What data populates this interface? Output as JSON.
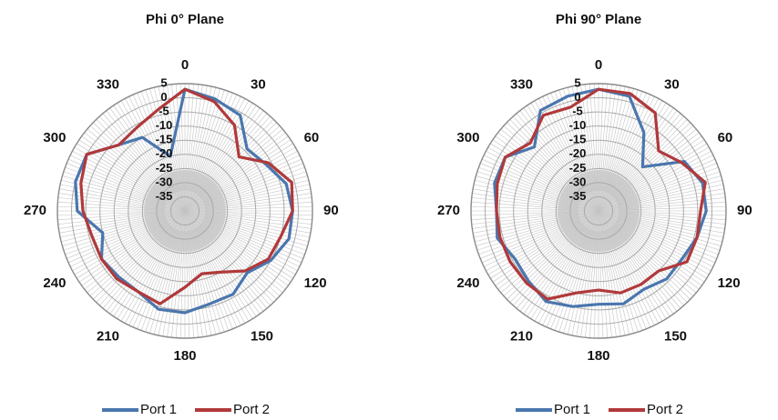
{
  "chart_data": [
    {
      "type": "radar",
      "title": "Phi 0° Plane",
      "angle_labels": [
        "0",
        "30",
        "60",
        "90",
        "120",
        "150",
        "180",
        "210",
        "240",
        "270",
        "300",
        "330"
      ],
      "radial_tick_labels": [
        "5",
        "0",
        "-5",
        "-10",
        "-15",
        "-20",
        "-25",
        "-30",
        "-35"
      ],
      "rlim": [
        -40,
        5
      ],
      "grid": true,
      "legend_position": "bottom",
      "angles_deg": [
        0,
        15,
        30,
        45,
        60,
        75,
        90,
        105,
        120,
        135,
        150,
        165,
        180,
        195,
        210,
        225,
        240,
        255,
        270,
        285,
        300,
        315,
        330,
        345
      ],
      "series": [
        {
          "name": "Port 1",
          "color": "#4a76ae",
          "values": [
            3,
            1,
            -1,
            -9,
            -7,
            -3,
            -2,
            -2,
            -5,
            -9,
            -6,
            -6,
            -4,
            -4,
            -7,
            -7,
            -6,
            -10,
            -2,
            0,
            0,
            -7,
            -10,
            -20
          ]
        },
        {
          "name": "Port 2",
          "color": "#b0393b",
          "values": [
            3,
            0,
            -5,
            -13,
            -6,
            -1,
            -2,
            -5,
            -6,
            -10,
            -15,
            -17,
            -13,
            -6,
            -7,
            -6,
            -6,
            -6,
            -4,
            -2,
            0,
            -7,
            -6,
            -3
          ]
        }
      ]
    },
    {
      "type": "radar",
      "title": "Phi 90° Plane",
      "angle_labels": [
        "0",
        "30",
        "60",
        "90",
        "120",
        "150",
        "180",
        "210",
        "240",
        "270",
        "300",
        "330"
      ],
      "radial_tick_labels": [
        "5",
        "0",
        "-5",
        "-10",
        "-15",
        "-20",
        "-25",
        "-30",
        "-35"
      ],
      "rlim": [
        -40,
        5
      ],
      "grid": true,
      "legend_position": "bottom",
      "angles_deg": [
        0,
        15,
        30,
        45,
        60,
        75,
        90,
        105,
        120,
        135,
        150,
        165,
        180,
        195,
        210,
        225,
        240,
        255,
        270,
        285,
        300,
        315,
        330,
        345
      ],
      "series": [
        {
          "name": "Port 1",
          "color": "#4a76ae",
          "values": [
            3,
            2,
            -8,
            -18,
            -5,
            -2,
            -2,
            -4,
            -6,
            -6,
            -8,
            -6,
            -7,
            -5,
            -3,
            -5,
            -6,
            -3,
            -4,
            -2,
            -2,
            -8,
            1,
            2
          ]
        },
        {
          "name": "Port 2",
          "color": "#b0393b",
          "values": [
            3,
            3,
            0,
            -10,
            -6,
            -1,
            -4,
            -4,
            -4,
            -10,
            -10,
            -10,
            -12,
            -10,
            -4,
            -4,
            -4,
            -4,
            -4,
            -3,
            -2,
            -6,
            -1,
            -2
          ]
        }
      ]
    }
  ]
}
